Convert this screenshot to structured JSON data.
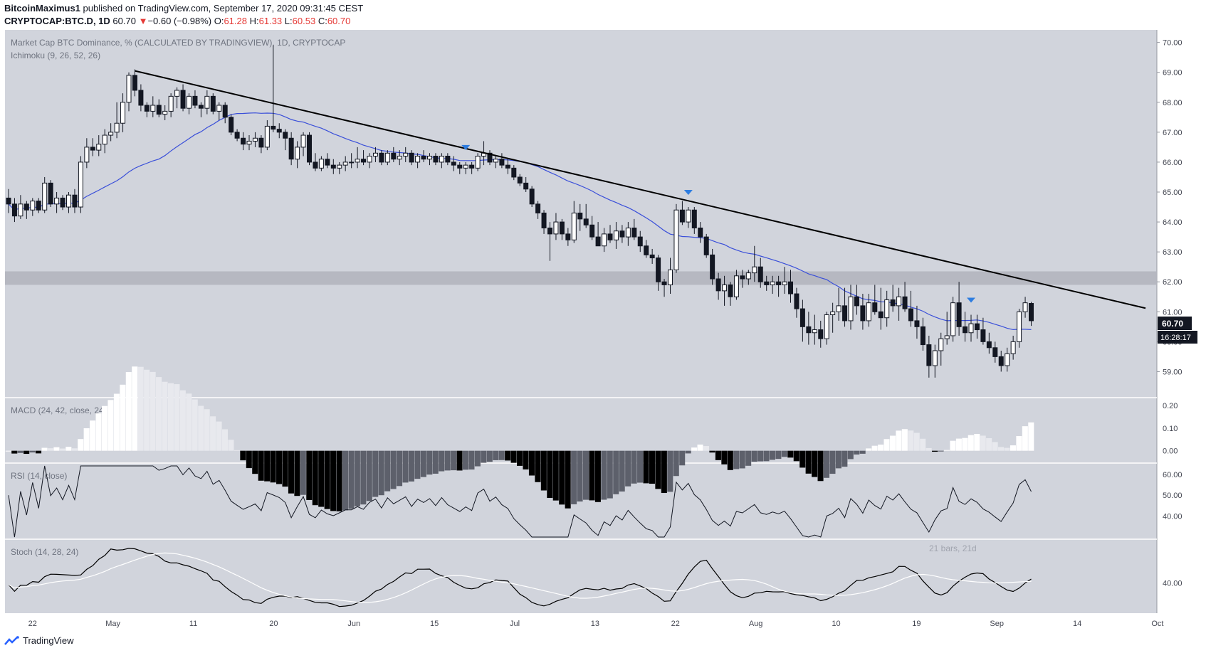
{
  "header": {
    "publisher": "BitcoinMaximus1",
    "published_text": "published on TradingView.com, September 17, 2020 09:31:45 CEST",
    "symbol": "CRYPTOCAP:BTC.D, 1D",
    "last": "60.70",
    "change_glyph": "▼",
    "change": "−0.60 (−0.98%)",
    "o_label": "O:",
    "o": "61.28",
    "h_label": "H:",
    "h": "61.33",
    "l_label": "L:",
    "l": "60.53",
    "c_label": "C:",
    "c": "60.70"
  },
  "panes": {
    "main_title": "Market Cap BTC Dominance, % (CALCULATED BY TRADINGVIEW), 1D, CRYPTOCAP",
    "main_indicator": "Ichimoku (9, 26, 52, 26)",
    "macd_title": "MACD (24, 42, close, 24)",
    "rsi_title": "RSI (14, close)",
    "stoch_title": "Stoch (14, 28, 24)",
    "stoch_faint": "21 bars, 21d"
  },
  "price_tags": {
    "last": "60.70",
    "countdown": "16:28:17"
  },
  "footer": {
    "brand": "TradingView"
  },
  "colors": {
    "background": "#d1d4dc",
    "up_candle": "#ffffff",
    "down_candle": "#131722",
    "kijun": "#3a4fd9",
    "marker": "#2e7de0",
    "resistance_band": "#b2b5be",
    "price_label_bg": "#131722"
  },
  "chart_data": {
    "type": "candlestick",
    "x_ticks": [
      "22",
      "May",
      "11",
      "20",
      "Jun",
      "15",
      "Jul",
      "13",
      "22",
      "Aug",
      "10",
      "19",
      "Sep",
      "14",
      "Oct"
    ],
    "y_ticks": [
      "70.00",
      "69.00",
      "68.00",
      "67.00",
      "66.00",
      "65.00",
      "64.00",
      "63.00",
      "62.00",
      "61.00",
      "60.00",
      "59.00"
    ],
    "ylim": [
      58.25,
      70.3
    ],
    "resistance_zone": [
      61.9,
      62.35
    ],
    "ohlc": [
      [
        64.8,
        65.1,
        64.3,
        64.6
      ],
      [
        64.6,
        64.8,
        64.0,
        64.2
      ],
      [
        64.2,
        64.9,
        64.1,
        64.6
      ],
      [
        64.6,
        64.7,
        64.1,
        64.4
      ],
      [
        64.4,
        64.8,
        64.2,
        64.7
      ],
      [
        64.7,
        64.8,
        64.3,
        64.4
      ],
      [
        64.4,
        65.5,
        64.3,
        65.3
      ],
      [
        65.3,
        65.4,
        64.5,
        64.6
      ],
      [
        64.6,
        65.0,
        64.3,
        64.8
      ],
      [
        64.8,
        64.9,
        64.4,
        64.5
      ],
      [
        64.5,
        65.0,
        64.3,
        64.9
      ],
      [
        64.9,
        65.1,
        64.3,
        64.5
      ],
      [
        64.5,
        66.2,
        64.3,
        66.0
      ],
      [
        66.0,
        66.8,
        65.8,
        66.5
      ],
      [
        66.5,
        66.8,
        66.2,
        66.4
      ],
      [
        66.4,
        66.9,
        66.2,
        66.6
      ],
      [
        66.6,
        67.1,
        66.3,
        66.9
      ],
      [
        66.9,
        67.3,
        66.7,
        67.0
      ],
      [
        67.0,
        68.0,
        66.8,
        67.3
      ],
      [
        67.3,
        68.3,
        67.0,
        68.0
      ],
      [
        68.0,
        69.0,
        67.7,
        68.9
      ],
      [
        68.9,
        69.1,
        68.2,
        68.4
      ],
      [
        68.4,
        68.6,
        67.7,
        67.9
      ],
      [
        67.9,
        68.0,
        67.5,
        67.7
      ],
      [
        67.7,
        68.2,
        67.5,
        67.9
      ],
      [
        67.9,
        68.1,
        67.5,
        67.6
      ],
      [
        67.6,
        67.9,
        67.4,
        67.7
      ],
      [
        67.7,
        68.3,
        67.5,
        68.2
      ],
      [
        68.2,
        68.5,
        67.8,
        68.4
      ],
      [
        68.4,
        68.6,
        67.7,
        67.8
      ],
      [
        67.8,
        68.3,
        67.6,
        68.2
      ],
      [
        68.2,
        68.4,
        67.8,
        67.9
      ],
      [
        67.9,
        68.0,
        67.5,
        67.8
      ],
      [
        67.8,
        68.4,
        67.6,
        68.2
      ],
      [
        68.2,
        68.3,
        67.6,
        67.7
      ],
      [
        67.7,
        68.0,
        67.4,
        67.9
      ],
      [
        67.9,
        68.0,
        67.3,
        67.5
      ],
      [
        67.5,
        67.6,
        66.9,
        67.0
      ],
      [
        67.0,
        67.1,
        66.7,
        66.8
      ],
      [
        66.8,
        67.0,
        66.4,
        66.6
      ],
      [
        66.6,
        66.9,
        66.4,
        66.7
      ],
      [
        66.7,
        67.0,
        66.5,
        66.8
      ],
      [
        66.8,
        66.9,
        66.3,
        66.5
      ],
      [
        66.5,
        67.4,
        66.4,
        67.2
      ],
      [
        67.2,
        69.9,
        67.0,
        67.1
      ],
      [
        67.1,
        67.3,
        66.8,
        67.0
      ],
      [
        67.0,
        67.1,
        66.4,
        66.8
      ],
      [
        66.8,
        67.0,
        65.9,
        66.1
      ],
      [
        66.1,
        66.7,
        65.8,
        66.5
      ],
      [
        66.5,
        67.0,
        66.2,
        66.9
      ],
      [
        66.9,
        67.0,
        65.9,
        66.0
      ],
      [
        66.0,
        66.3,
        65.7,
        65.8
      ],
      [
        65.8,
        66.2,
        65.7,
        66.1
      ],
      [
        66.1,
        66.3,
        65.8,
        65.9
      ],
      [
        65.9,
        66.1,
        65.6,
        65.8
      ],
      [
        65.8,
        66.0,
        65.6,
        65.9
      ],
      [
        65.9,
        66.2,
        65.7,
        66.0
      ],
      [
        66.0,
        66.3,
        65.8,
        66.0
      ],
      [
        66.0,
        66.5,
        65.8,
        66.1
      ],
      [
        66.1,
        66.4,
        65.9,
        66.0
      ],
      [
        66.0,
        66.3,
        65.8,
        66.2
      ],
      [
        66.2,
        66.5,
        66.0,
        66.3
      ],
      [
        66.3,
        66.4,
        65.9,
        66.0
      ],
      [
        66.0,
        66.4,
        65.9,
        66.3
      ],
      [
        66.3,
        66.5,
        66.0,
        66.1
      ],
      [
        66.1,
        66.4,
        65.9,
        66.2
      ],
      [
        66.2,
        66.5,
        66.0,
        66.3
      ],
      [
        66.3,
        66.4,
        65.9,
        66.0
      ],
      [
        66.0,
        66.3,
        65.8,
        66.2
      ],
      [
        66.2,
        66.4,
        66.0,
        66.1
      ],
      [
        66.1,
        66.3,
        65.9,
        66.2
      ],
      [
        66.2,
        66.3,
        65.9,
        66.0
      ],
      [
        66.0,
        66.3,
        65.8,
        66.2
      ],
      [
        66.2,
        66.3,
        65.9,
        66.0
      ],
      [
        66.0,
        66.2,
        65.7,
        65.9
      ],
      [
        65.9,
        66.0,
        65.6,
        65.8
      ],
      [
        65.8,
        66.0,
        65.6,
        65.9
      ],
      [
        65.9,
        66.0,
        65.6,
        65.8
      ],
      [
        65.8,
        66.3,
        65.7,
        66.2
      ],
      [
        66.2,
        66.7,
        65.9,
        66.3
      ],
      [
        66.3,
        66.4,
        65.9,
        66.0
      ],
      [
        66.0,
        66.2,
        65.8,
        66.1
      ],
      [
        66.1,
        66.3,
        65.8,
        65.9
      ],
      [
        65.9,
        66.1,
        65.6,
        65.8
      ],
      [
        65.8,
        65.9,
        65.4,
        65.5
      ],
      [
        65.5,
        65.6,
        65.2,
        65.3
      ],
      [
        65.3,
        65.5,
        65.0,
        65.1
      ],
      [
        65.1,
        65.2,
        64.5,
        64.6
      ],
      [
        64.6,
        64.7,
        64.1,
        64.3
      ],
      [
        64.3,
        64.4,
        63.6,
        63.8
      ],
      [
        63.8,
        64.0,
        62.7,
        63.6
      ],
      [
        63.6,
        64.3,
        63.4,
        64.0
      ],
      [
        64.0,
        64.1,
        63.4,
        63.6
      ],
      [
        63.6,
        63.8,
        63.2,
        63.4
      ],
      [
        63.4,
        64.7,
        63.3,
        64.3
      ],
      [
        64.3,
        64.6,
        63.7,
        64.1
      ],
      [
        64.1,
        64.6,
        63.8,
        63.9
      ],
      [
        63.9,
        64.2,
        63.4,
        63.5
      ],
      [
        63.5,
        64.0,
        63.2,
        63.2
      ],
      [
        63.2,
        63.8,
        63.0,
        63.6
      ],
      [
        63.6,
        63.9,
        63.3,
        63.4
      ],
      [
        63.4,
        64.0,
        63.1,
        63.7
      ],
      [
        63.7,
        63.9,
        63.3,
        63.5
      ],
      [
        63.5,
        64.0,
        63.2,
        63.8
      ],
      [
        63.8,
        64.1,
        63.4,
        63.5
      ],
      [
        63.5,
        63.7,
        63.0,
        63.2
      ],
      [
        63.2,
        63.4,
        62.8,
        62.9
      ],
      [
        62.9,
        63.1,
        62.6,
        62.8
      ],
      [
        62.8,
        62.9,
        61.7,
        62.0
      ],
      [
        62.0,
        62.1,
        61.5,
        61.9
      ],
      [
        61.9,
        62.8,
        61.6,
        62.4
      ],
      [
        62.4,
        64.6,
        62.3,
        64.4
      ],
      [
        64.4,
        64.7,
        63.9,
        64.0
      ],
      [
        64.0,
        64.5,
        63.8,
        64.4
      ],
      [
        64.4,
        64.5,
        63.6,
        63.8
      ],
      [
        63.8,
        64.0,
        63.3,
        63.5
      ],
      [
        63.5,
        63.6,
        62.8,
        62.9
      ],
      [
        62.9,
        63.1,
        61.9,
        62.1
      ],
      [
        62.1,
        62.3,
        61.4,
        61.7
      ],
      [
        61.7,
        62.2,
        61.2,
        61.9
      ],
      [
        61.9,
        62.0,
        61.2,
        61.5
      ],
      [
        61.5,
        62.4,
        61.4,
        62.2
      ],
      [
        62.2,
        62.4,
        61.8,
        62.1
      ],
      [
        62.1,
        62.4,
        61.9,
        62.3
      ],
      [
        62.3,
        63.2,
        62.0,
        62.5
      ],
      [
        62.5,
        62.8,
        61.8,
        62.0
      ],
      [
        62.0,
        62.2,
        61.7,
        61.9
      ],
      [
        61.9,
        62.2,
        61.6,
        62.0
      ],
      [
        62.0,
        62.2,
        61.5,
        61.9
      ],
      [
        61.9,
        62.5,
        61.6,
        62.0
      ],
      [
        62.0,
        62.4,
        61.3,
        61.6
      ],
      [
        61.6,
        61.8,
        60.8,
        61.1
      ],
      [
        61.1,
        61.4,
        60.0,
        60.5
      ],
      [
        60.5,
        61.0,
        59.9,
        60.3
      ],
      [
        60.3,
        60.9,
        59.9,
        60.4
      ],
      [
        60.4,
        60.7,
        59.8,
        60.1
      ],
      [
        60.1,
        61.0,
        59.9,
        60.9
      ],
      [
        60.9,
        61.3,
        60.3,
        61.0
      ],
      [
        61.0,
        61.8,
        60.7,
        61.2
      ],
      [
        61.2,
        61.8,
        60.5,
        60.7
      ],
      [
        60.7,
        61.9,
        60.4,
        61.5
      ],
      [
        61.5,
        61.9,
        60.9,
        61.2
      ],
      [
        61.2,
        61.6,
        60.4,
        60.7
      ],
      [
        60.7,
        61.6,
        60.5,
        61.3
      ],
      [
        61.3,
        61.9,
        60.9,
        61.0
      ],
      [
        61.0,
        61.8,
        60.4,
        60.8
      ],
      [
        60.8,
        61.7,
        60.5,
        61.4
      ],
      [
        61.4,
        61.9,
        61.0,
        61.2
      ],
      [
        61.2,
        61.8,
        60.7,
        61.5
      ],
      [
        61.5,
        62.0,
        61.0,
        61.1
      ],
      [
        61.1,
        61.7,
        60.5,
        60.7
      ],
      [
        60.7,
        61.2,
        60.1,
        60.5
      ],
      [
        60.5,
        60.8,
        59.7,
        59.9
      ],
      [
        59.9,
        60.2,
        58.8,
        59.2
      ],
      [
        59.2,
        59.9,
        58.8,
        59.7
      ],
      [
        59.7,
        60.3,
        59.2,
        60.1
      ],
      [
        60.1,
        61.0,
        59.9,
        60.2
      ],
      [
        60.2,
        61.5,
        60.0,
        61.3
      ],
      [
        61.3,
        62.0,
        60.2,
        60.5
      ],
      [
        60.5,
        61.0,
        60.0,
        60.3
      ],
      [
        60.3,
        60.9,
        60.0,
        60.6
      ],
      [
        60.6,
        60.9,
        60.1,
        60.4
      ],
      [
        60.4,
        60.8,
        59.9,
        60.0
      ],
      [
        60.0,
        60.3,
        59.6,
        59.8
      ],
      [
        59.8,
        60.0,
        59.3,
        59.5
      ],
      [
        59.5,
        59.7,
        59.0,
        59.2
      ],
      [
        59.2,
        59.8,
        59.0,
        59.6
      ],
      [
        59.6,
        60.2,
        59.4,
        60.0
      ],
      [
        60.0,
        61.1,
        59.8,
        61.0
      ],
      [
        61.0,
        61.5,
        60.8,
        61.3
      ],
      [
        61.28,
        61.33,
        60.53,
        60.7
      ]
    ],
    "lines": {
      "kijun_note": "blue moving line over price",
      "trend_start": {
        "index": 21,
        "price": 69.05
      },
      "trend_end": {
        "index": 189,
        "price": 61.12
      }
    },
    "markers_down_at_index": [
      76,
      113,
      160
    ],
    "macd_ticks": [
      "0.20",
      "0.10",
      "0.00"
    ],
    "macd_ylim": [
      -0.045,
      0.225
    ],
    "rsi_ticks": [
      "60.00",
      "50.00",
      "40.00"
    ],
    "rsi_ylim": [
      30,
      64
    ],
    "stoch_ticks": [
      "40.00"
    ],
    "stoch_ylim": [
      0,
      100
    ]
  }
}
